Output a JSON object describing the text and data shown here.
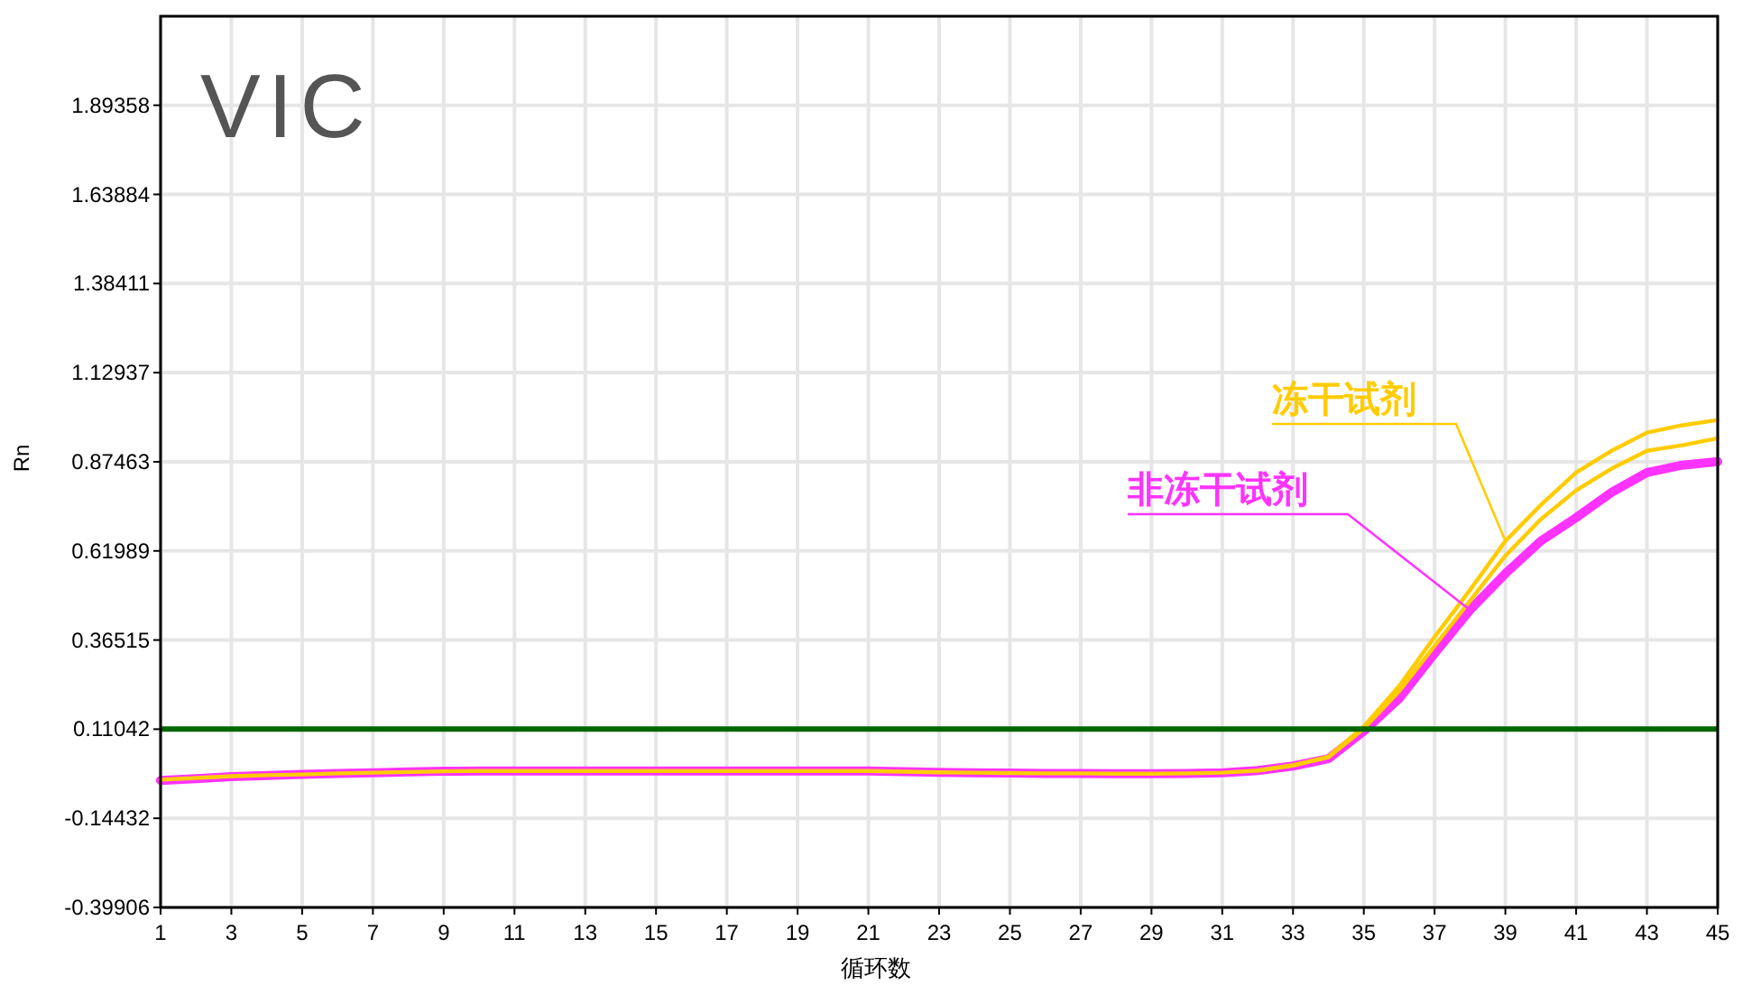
{
  "chart_data": {
    "type": "line",
    "title": "VIC",
    "xlabel": "循环数",
    "ylabel": "Rn",
    "x": [
      1,
      2,
      3,
      4,
      5,
      6,
      7,
      8,
      9,
      10,
      11,
      12,
      13,
      14,
      15,
      16,
      17,
      18,
      19,
      20,
      21,
      22,
      23,
      24,
      25,
      26,
      27,
      28,
      29,
      30,
      31,
      32,
      33,
      34,
      35,
      36,
      37,
      38,
      39,
      40,
      41,
      42,
      43,
      44,
      45
    ],
    "series": [
      {
        "name": "冻干试剂",
        "color": "#ffcc00",
        "values": [
          -0.034,
          -0.029,
          -0.024,
          -0.021,
          -0.019,
          -0.016,
          -0.014,
          -0.012,
          -0.01,
          -0.009,
          -0.009,
          -0.009,
          -0.009,
          -0.009,
          -0.009,
          -0.009,
          -0.009,
          -0.009,
          -0.009,
          -0.009,
          -0.009,
          -0.011,
          -0.013,
          -0.014,
          -0.015,
          -0.016,
          -0.016,
          -0.017,
          -0.017,
          -0.016,
          -0.014,
          -0.008,
          0.007,
          0.032,
          0.118,
          0.234,
          0.374,
          0.508,
          0.648,
          0.751,
          0.844,
          0.906,
          0.958,
          0.979,
          0.994
        ]
      },
      {
        "color": "#ffcc00",
        "values": [
          null,
          null,
          null,
          null,
          null,
          null,
          null,
          null,
          null,
          null,
          null,
          null,
          null,
          null,
          null,
          null,
          null,
          null,
          null,
          null,
          null,
          null,
          null,
          null,
          null,
          null,
          null,
          null,
          null,
          null,
          null,
          -0.008,
          0.007,
          0.03,
          0.112,
          0.219,
          0.348,
          0.477,
          0.606,
          0.71,
          0.793,
          0.855,
          0.906,
          0.922,
          0.942
        ]
      },
      {
        "name": "非冻干试剂",
        "color": "#ff33ff",
        "values": [
          -0.036,
          -0.031,
          -0.025,
          -0.022,
          -0.019,
          -0.016,
          -0.014,
          -0.012,
          -0.01,
          -0.009,
          -0.009,
          -0.009,
          -0.009,
          -0.009,
          -0.009,
          -0.009,
          -0.009,
          -0.009,
          -0.009,
          -0.009,
          -0.009,
          -0.011,
          -0.013,
          -0.014,
          -0.015,
          -0.016,
          -0.016,
          -0.017,
          -0.017,
          -0.016,
          -0.014,
          -0.008,
          0.005,
          0.026,
          0.105,
          0.198,
          0.327,
          0.451,
          0.555,
          0.648,
          0.715,
          0.787,
          0.844,
          0.865,
          0.875
        ]
      }
    ],
    "xlim": [
      1,
      45
    ],
    "xticks": [
      1,
      3,
      5,
      7,
      9,
      11,
      13,
      15,
      17,
      19,
      21,
      23,
      25,
      27,
      29,
      31,
      33,
      35,
      37,
      39,
      41,
      43,
      45
    ],
    "ylim": [
      -0.39906,
      2.148
    ],
    "yticks": [
      -0.39906,
      -0.14432,
      0.11042,
      0.36515,
      0.61989,
      0.87463,
      1.12937,
      1.38411,
      1.63884,
      1.89358
    ],
    "ref_lines": [
      {
        "axis": "y",
        "value": 0.11042,
        "color": "#006600"
      }
    ],
    "grid": true,
    "marker": "none",
    "line_style": "solid"
  }
}
